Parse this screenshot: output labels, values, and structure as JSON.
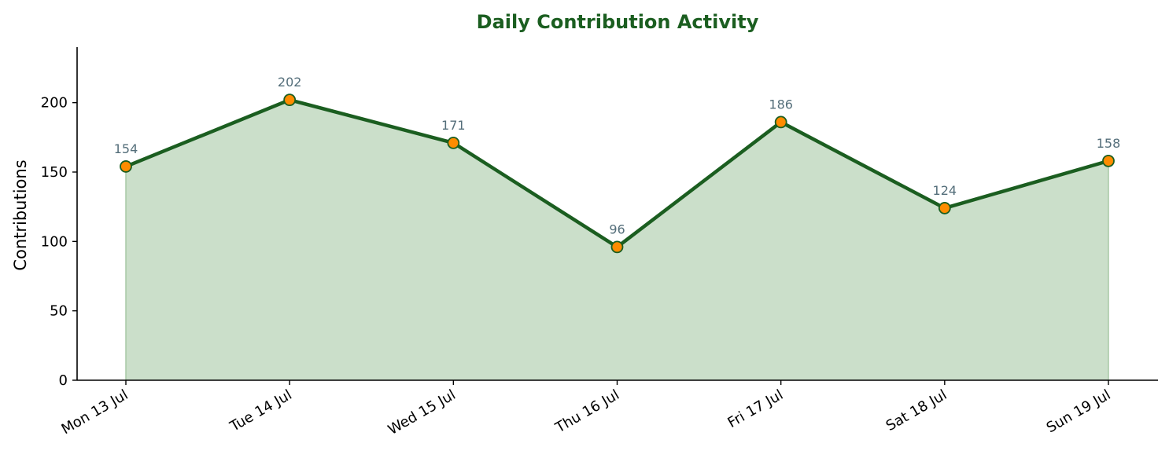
{
  "chart_data": {
    "type": "area",
    "title": "Daily Contribution Activity",
    "xlabel": "",
    "ylabel": "Contributions",
    "categories": [
      "Mon 13 Jul",
      "Tue 14 Jul",
      "Wed 15 Jul",
      "Thu 16 Jul",
      "Fri 17 Jul",
      "Sat 18 Jul",
      "Sun 19 Jul"
    ],
    "series": [
      {
        "values": [
          154,
          202,
          171,
          96,
          186,
          124,
          158
        ]
      }
    ],
    "ylim": [
      0,
      240
    ],
    "yticks": [
      0,
      50,
      100,
      150,
      200
    ],
    "grid": false,
    "legend": "none",
    "colors": {
      "title": "#1b5e20",
      "line": "#1b5e20",
      "fill": "#cbdfca",
      "fill_edge": "#a7c8a5",
      "marker": "#ff8c00",
      "marker_edge": "#1b5e20",
      "data_label": "#546e7a",
      "axis": "#000000"
    }
  }
}
